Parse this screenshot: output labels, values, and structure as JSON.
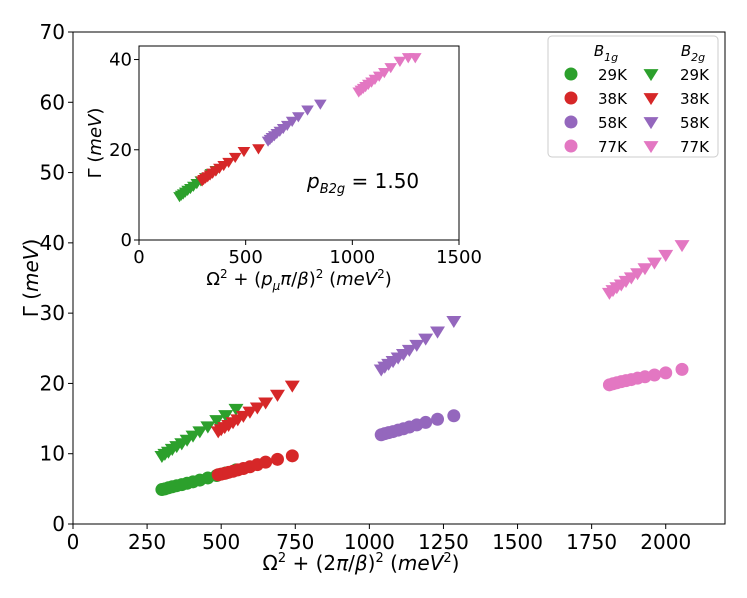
{
  "chart_data": [
    {
      "id": "main",
      "type": "scatter",
      "xlabel": "Ω² + (2π/β)² (meV²)",
      "ylabel": "Γ (meV)",
      "xlim": [
        0,
        2200
      ],
      "ylim": [
        0,
        70
      ],
      "x_ticks": [
        0,
        250,
        500,
        750,
        1000,
        1250,
        1500,
        1750,
        2000
      ],
      "y_ticks": [
        0,
        10,
        20,
        30,
        40,
        50,
        60,
        70
      ],
      "legend": {
        "placement": "top-right",
        "column_headers": [
          "B1g",
          "B2g"
        ],
        "entries": [
          {
            "label_b1g": "29K",
            "label_b2g": "29K",
            "color": "#2ca02c"
          },
          {
            "label_b1g": "38K",
            "label_b2g": "38K",
            "color": "#d62728"
          },
          {
            "label_b1g": "58K",
            "label_b2g": "58K",
            "color": "#9467bd"
          },
          {
            "label_b1g": "77K",
            "label_b2g": "77K",
            "color": "#e377c2"
          }
        ]
      },
      "series": [
        {
          "name": "B1g 29K",
          "marker": "circle",
          "color": "#2ca02c",
          "x": [
            300,
            310,
            322,
            335,
            350,
            367,
            385,
            405,
            428,
            455,
            485,
            515,
            550
          ],
          "y": [
            4.9,
            5.0,
            5.15,
            5.3,
            5.45,
            5.6,
            5.8,
            6.0,
            6.25,
            6.55,
            6.9,
            7.25,
            7.7
          ]
        },
        {
          "name": "B1g 38K",
          "marker": "circle",
          "color": "#d62728",
          "x": [
            490,
            500,
            512,
            525,
            540,
            556,
            575,
            597,
            622,
            650,
            690,
            740
          ],
          "y": [
            7.0,
            7.1,
            7.2,
            7.35,
            7.5,
            7.7,
            7.9,
            8.15,
            8.45,
            8.8,
            9.2,
            9.7
          ]
        },
        {
          "name": "B1g 58K",
          "marker": "circle",
          "color": "#9467bd",
          "x": [
            1040,
            1052,
            1065,
            1080,
            1097,
            1115,
            1135,
            1160,
            1190,
            1230,
            1285
          ],
          "y": [
            12.7,
            12.85,
            13.0,
            13.15,
            13.35,
            13.55,
            13.8,
            14.1,
            14.45,
            14.9,
            15.4
          ]
        },
        {
          "name": "B1g 77K",
          "marker": "circle",
          "color": "#e377c2",
          "x": [
            1810,
            1822,
            1835,
            1850,
            1866,
            1884,
            1905,
            1930,
            1962,
            2000,
            2055
          ],
          "y": [
            19.8,
            19.95,
            20.1,
            20.25,
            20.4,
            20.55,
            20.75,
            20.95,
            21.2,
            21.5,
            22.0
          ]
        },
        {
          "name": "B2g 29K",
          "marker": "triangle-down",
          "color": "#2ca02c",
          "x": [
            300,
            310,
            322,
            335,
            350,
            367,
            385,
            405,
            428,
            455,
            485,
            515,
            550
          ],
          "y": [
            9.7,
            10.0,
            10.3,
            10.7,
            11.1,
            11.5,
            12.0,
            12.6,
            13.2,
            13.9,
            14.8,
            15.5,
            16.4
          ]
        },
        {
          "name": "B2g 38K",
          "marker": "triangle-down",
          "color": "#d62728",
          "x": [
            490,
            500,
            512,
            525,
            540,
            556,
            575,
            597,
            622,
            650,
            690,
            740
          ],
          "y": [
            13.2,
            13.5,
            13.8,
            14.1,
            14.5,
            14.9,
            15.4,
            16.0,
            16.6,
            17.3,
            18.4,
            19.7
          ]
        },
        {
          "name": "B2g 58K",
          "marker": "triangle-down",
          "color": "#9467bd",
          "x": [
            1040,
            1052,
            1065,
            1080,
            1097,
            1115,
            1135,
            1160,
            1190,
            1230,
            1285
          ],
          "y": [
            22.0,
            22.4,
            22.8,
            23.2,
            23.7,
            24.2,
            24.8,
            25.5,
            26.4,
            27.4,
            28.9
          ]
        },
        {
          "name": "B2g 77K",
          "marker": "triangle-down",
          "color": "#e377c2",
          "x": [
            1810,
            1822,
            1835,
            1850,
            1866,
            1884,
            1905,
            1930,
            1962,
            2000,
            2055
          ],
          "y": [
            32.9,
            33.3,
            33.7,
            34.1,
            34.6,
            35.1,
            35.7,
            36.4,
            37.2,
            38.3,
            39.7
          ]
        }
      ]
    },
    {
      "id": "inset",
      "type": "scatter",
      "xlabel": "Ω² + (pμπ/β)² (meV²)",
      "ylabel": "Γ (meV)",
      "xlim": [
        0,
        1500
      ],
      "ylim": [
        0,
        43
      ],
      "x_ticks": [
        0,
        500,
        1000,
        1500
      ],
      "y_ticks": [
        0,
        20,
        40
      ],
      "annotation": "pB2g = 1.50",
      "annotation_parts": {
        "symbol": "p",
        "subscript": "B2g",
        "value": " = 1.50"
      },
      "series": [
        {
          "name": "B2g 29K",
          "marker": "triangle-down",
          "color": "#2ca02c",
          "x": [
            190,
            198,
            207,
            217,
            228,
            241,
            255,
            271,
            290,
            311,
            337,
            362
          ],
          "y": [
            9.7,
            10.0,
            10.3,
            10.7,
            11.1,
            11.5,
            12.0,
            12.6,
            13.2,
            13.9,
            14.8,
            15.5
          ]
        },
        {
          "name": "B2g 38K",
          "marker": "triangle-down",
          "color": "#d62728",
          "x": [
            296,
            303,
            312,
            322,
            333,
            345,
            360,
            377,
            397,
            420,
            451,
            492,
            560
          ],
          "y": [
            13.2,
            13.5,
            13.8,
            14.1,
            14.5,
            14.9,
            15.4,
            16.0,
            16.6,
            17.3,
            18.4,
            19.7,
            20.3
          ]
        },
        {
          "name": "B2g 58K",
          "marker": "triangle-down",
          "color": "#9467bd",
          "x": [
            605,
            614,
            623,
            634,
            646,
            660,
            676,
            695,
            718,
            747,
            790,
            850
          ],
          "y": [
            22.0,
            22.4,
            22.8,
            23.2,
            23.7,
            24.2,
            24.8,
            25.5,
            26.4,
            27.4,
            28.9,
            30.2
          ]
        },
        {
          "name": "B2g 77K",
          "marker": "triangle-down",
          "color": "#e377c2",
          "x": [
            1030,
            1040,
            1051,
            1062,
            1075,
            1090,
            1106,
            1126,
            1150,
            1180,
            1223,
            1262,
            1295
          ],
          "y": [
            32.9,
            33.3,
            33.7,
            34.1,
            34.6,
            35.1,
            35.7,
            36.4,
            37.2,
            38.3,
            39.7,
            40.5,
            40.5
          ]
        }
      ]
    }
  ]
}
